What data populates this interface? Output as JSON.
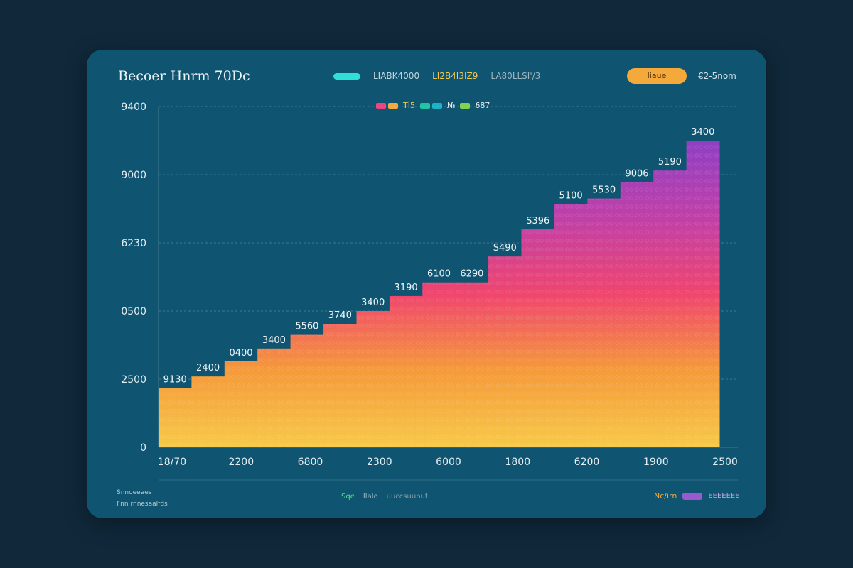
{
  "header": {
    "title": "Becoer Hnrm 70Dc",
    "legend": [
      {
        "label": "LIABK4000",
        "color": "#2fe0d8"
      },
      {
        "label": "LI2B4I3IZ9",
        "color": "#f2c94c"
      },
      {
        "label": "LA80LLSI'/3",
        "color": "#9fb4bd"
      }
    ],
    "button_label": "Iiaue",
    "right_label": "€2-5nom"
  },
  "series_key": {
    "swatches": [
      "#f0427e",
      "#f5a93a",
      "#1fc4a0",
      "#18b3c4",
      "#7fd34f"
    ],
    "text1": "Tİ5",
    "text2": "№",
    "text3": "687"
  },
  "chart_data": {
    "type": "bar",
    "title": "Becoer Hnrm 70Dc",
    "xlabel": "",
    "ylabel": "",
    "grid": true,
    "y_ticks": [
      {
        "label": "9400",
        "value": 5
      },
      {
        "label": "9000",
        "value": 4
      },
      {
        "label": "6230",
        "value": 3
      },
      {
        "label": "0500",
        "value": 2
      },
      {
        "label": "2500",
        "value": 1
      },
      {
        "label": "0",
        "value": 0
      }
    ],
    "ylim": [
      0,
      5
    ],
    "x_ticks": [
      "18/70",
      "2200",
      "6800",
      "2300",
      "6000",
      "1800",
      "6200",
      "1900",
      "2500"
    ],
    "bar_labels": [
      "9130",
      "2400",
      "0400",
      "3400",
      "5560",
      "3740",
      "3400",
      "3190",
      "6100",
      "6290",
      "S490",
      "S396",
      "5100",
      "5530",
      "9006",
      "5190",
      "3400"
    ],
    "values": [
      0.87,
      1.04,
      1.26,
      1.45,
      1.65,
      1.81,
      2.0,
      2.22,
      2.42,
      2.42,
      2.8,
      3.2,
      3.57,
      3.65,
      3.89,
      4.06,
      4.5
    ],
    "gradient": [
      "#f7c948",
      "#f59a3a",
      "#f0456e",
      "#c040a8",
      "#8f3fc4"
    ]
  },
  "footer": {
    "left_line1": "Snnoeeaes",
    "left_line2": "Fnn rnnesaalfds",
    "mid1": "Sqe",
    "mid2": "Ilalo",
    "mid3": "uuccsuuput",
    "right_text": "Nc/irn",
    "right_text2": "EEEEEEE"
  }
}
